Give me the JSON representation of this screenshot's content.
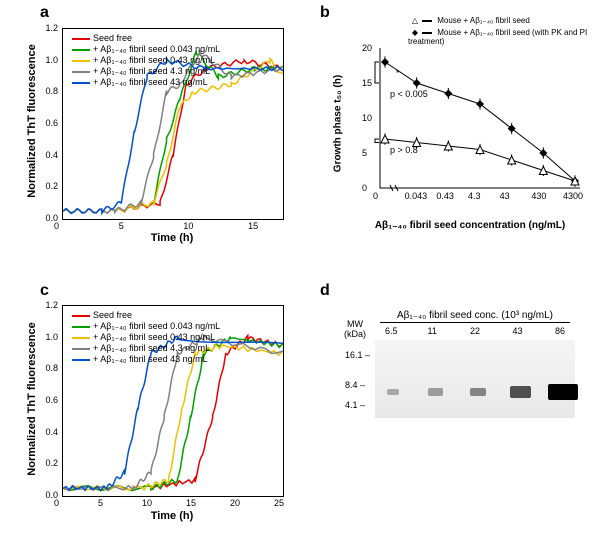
{
  "panel_labels": {
    "a": "a",
    "b": "b",
    "c": "c",
    "d": "d"
  },
  "panel_a": {
    "type": "line",
    "xlabel": "Time (h)",
    "ylabel": "Normalized ThT fluorescence",
    "xlim": [
      0,
      17
    ],
    "xtick_step": 5,
    "ylim": [
      0,
      1.2
    ],
    "ytick_step": 0.2,
    "legend": [
      {
        "label": "Seed free",
        "color": "#e60000"
      },
      {
        "label": "+ Aβ₁₋₄₀ fibril seed 0.043 ng/mL",
        "color": "#00a000"
      },
      {
        "label": "+ Aβ₁₋₄₀ fibril seed 0.43 ng/mL",
        "color": "#f0c000"
      },
      {
        "label": "+ Aβ₁₋₄₀ fibril seed 4.3 ng/mL",
        "color": "#808080"
      },
      {
        "label": "+ Aβ₁₋₄₀ fibril seed 43 ng/mL",
        "color": "#0050d0"
      }
    ],
    "series": [
      {
        "color": "#e60000",
        "pts": [
          [
            0,
            0.05
          ],
          [
            4,
            0.05
          ],
          [
            7.5,
            0.1
          ],
          [
            8.5,
            0.4
          ],
          [
            9.5,
            0.85
          ],
          [
            11,
            0.95
          ],
          [
            14,
            1.0
          ],
          [
            17,
            0.95
          ]
        ]
      },
      {
        "color": "#00a000",
        "pts": [
          [
            0,
            0.05
          ],
          [
            4,
            0.05
          ],
          [
            7,
            0.1
          ],
          [
            8,
            0.5
          ],
          [
            9,
            0.75
          ],
          [
            10.3,
            1.05
          ],
          [
            12,
            0.9
          ],
          [
            14.8,
            0.95
          ],
          [
            17,
            0.95
          ]
        ]
      },
      {
        "color": "#f0c000",
        "pts": [
          [
            0,
            0.05
          ],
          [
            4,
            0.05
          ],
          [
            7,
            0.1
          ],
          [
            8,
            0.35
          ],
          [
            9,
            0.7
          ],
          [
            10,
            0.8
          ],
          [
            13,
            0.85
          ],
          [
            16,
            1.0
          ],
          [
            17,
            0.9
          ]
        ]
      },
      {
        "color": "#808080",
        "pts": [
          [
            0,
            0.05
          ],
          [
            4,
            0.05
          ],
          [
            6,
            0.1
          ],
          [
            7,
            0.4
          ],
          [
            8,
            0.8
          ],
          [
            9,
            0.85
          ],
          [
            10.6,
            1.05
          ],
          [
            13,
            0.9
          ],
          [
            17,
            0.95
          ]
        ]
      },
      {
        "color": "#0050d0",
        "pts": [
          [
            0,
            0.05
          ],
          [
            3,
            0.05
          ],
          [
            4.5,
            0.1
          ],
          [
            5.5,
            0.55
          ],
          [
            6.5,
            0.9
          ],
          [
            8,
            1.0
          ],
          [
            11,
            0.95
          ],
          [
            17,
            0.95
          ]
        ]
      }
    ],
    "label_fontsize": 11,
    "tick_fontsize": 9,
    "line_width": 1.5
  },
  "panel_b": {
    "type": "line-markers",
    "xlabel": "Aβ₁₋₄₀ fibril seed concentration (ng/mL)",
    "ylabel": "Growth phase t₅₀ (h)",
    "xticks": [
      "0",
      "0.043",
      "0.43",
      "4.3",
      "43",
      "430",
      "4300"
    ],
    "ylim": [
      0,
      20
    ],
    "ytick_step": 5,
    "legend": [
      {
        "label": "Mouse + Aβ₁₋₄₀ fibril seed",
        "marker": "triangle"
      },
      {
        "label": "Mouse + Aβ₁₋₄₀ fibril seed (with PK and PI treatment)",
        "marker": "diamond"
      }
    ],
    "series": [
      {
        "marker": "diamond",
        "color": "#000",
        "pts": [
          [
            0,
            18
          ],
          [
            1,
            15
          ],
          [
            2,
            13.5
          ],
          [
            3,
            12
          ],
          [
            4,
            8.5
          ],
          [
            5,
            5
          ],
          [
            6,
            1
          ]
        ]
      },
      {
        "marker": "triangle",
        "color": "#000",
        "pts": [
          [
            0,
            7
          ],
          [
            1,
            6.5
          ],
          [
            2,
            6
          ],
          [
            3,
            5.5
          ],
          [
            4,
            4
          ],
          [
            5,
            2.5
          ],
          [
            6,
            1
          ]
        ]
      }
    ],
    "annotations": [
      {
        "text": "*",
        "pos": "upper"
      },
      {
        "text": "p < 0.005",
        "pos": "upper-p"
      },
      {
        "text": "p > 0.8",
        "pos": "lower-p"
      }
    ],
    "errorbar": 0.8,
    "label_fontsize": 10
  },
  "panel_c": {
    "type": "line",
    "xlabel": "Time (h)",
    "ylabel": "Normalized ThT fluorescence",
    "xlim": [
      0,
      25
    ],
    "xtick_step": 5,
    "ylim": [
      0,
      1.2
    ],
    "ytick_step": 0.2,
    "legend": [
      {
        "label": "Seed free",
        "color": "#e60000"
      },
      {
        "label": "+ Aβ₁₋₄₀ fibril seed 0.043 ng/mL",
        "color": "#00a000"
      },
      {
        "label": "+ Aβ₁₋₄₀ fibril seed 0.43 ng/mL",
        "color": "#f0c000"
      },
      {
        "label": "+ Aβ₁₋₄₀ fibril seed 4.3 ng/mL",
        "color": "#808080"
      },
      {
        "label": "+ Aβ₁₋₄₀ fibril seed 43 ng/mL",
        "color": "#0050d0"
      }
    ],
    "series": [
      {
        "color": "#e60000",
        "pts": [
          [
            0,
            0.05
          ],
          [
            10,
            0.05
          ],
          [
            15,
            0.1
          ],
          [
            17,
            0.5
          ],
          [
            18.5,
            0.9
          ],
          [
            21,
            1.0
          ],
          [
            25,
            0.95
          ]
        ]
      },
      {
        "color": "#00a000",
        "pts": [
          [
            0,
            0.05
          ],
          [
            10,
            0.05
          ],
          [
            13,
            0.1
          ],
          [
            14.5,
            0.5
          ],
          [
            16,
            0.9
          ],
          [
            19,
            1.0
          ],
          [
            25,
            0.95
          ]
        ]
      },
      {
        "color": "#f0c000",
        "pts": [
          [
            0,
            0.05
          ],
          [
            9,
            0.05
          ],
          [
            12,
            0.1
          ],
          [
            13.5,
            0.55
          ],
          [
            15,
            0.9
          ],
          [
            18,
            0.95
          ],
          [
            25,
            0.9
          ]
        ]
      },
      {
        "color": "#808080",
        "pts": [
          [
            0,
            0.05
          ],
          [
            8,
            0.05
          ],
          [
            10,
            0.15
          ],
          [
            11.5,
            0.5
          ],
          [
            13,
            0.9
          ],
          [
            16,
            1.0
          ],
          [
            25,
            0.9
          ]
        ]
      },
      {
        "color": "#0050d0",
        "pts": [
          [
            0,
            0.05
          ],
          [
            5,
            0.05
          ],
          [
            7,
            0.15
          ],
          [
            8.5,
            0.55
          ],
          [
            10,
            0.9
          ],
          [
            13,
            1.0
          ],
          [
            25,
            0.95
          ]
        ]
      }
    ]
  },
  "panel_d": {
    "type": "blot",
    "header": "Aβ₁₋₄₀ fibril seed conc. (10³ ng/mL)",
    "lanes": [
      "6.5",
      "11",
      "22",
      "43",
      "86"
    ],
    "mw_label": "MW (kDa)",
    "mw_ticks": [
      "16.1",
      "8.4",
      "4.1"
    ],
    "band_intensity": [
      0.05,
      0.12,
      0.25,
      0.55,
      1.0
    ],
    "band_color": "#222"
  },
  "colors": {
    "axis": "#000000",
    "bg": "#ffffff"
  }
}
